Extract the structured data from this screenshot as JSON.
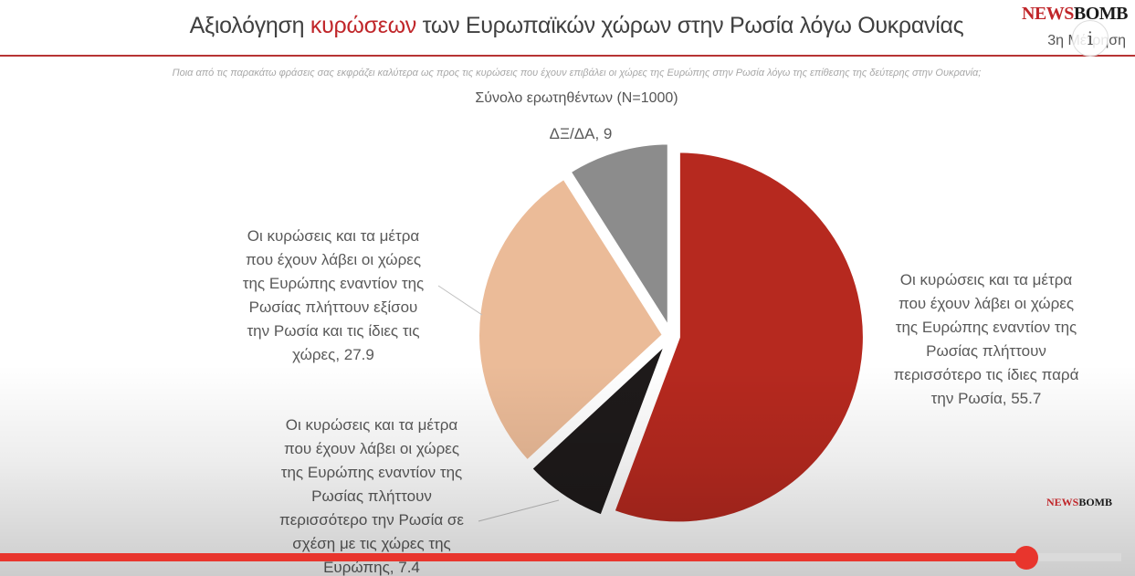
{
  "header": {
    "title_pre": "Αξιολόγηση ",
    "title_highlight": "κυρώσεων",
    "title_post": " των Ευρωπαϊκών χώρων στην Ρωσία λόγω Ουκρανίας",
    "brand_red": "NEWS",
    "brand_dark": "BOMB",
    "wave": "3η Μέτρηση"
  },
  "question": "Ποια από τις παρακάτω φράσεις σας εκφράζει καλύτερα ως προς τις κυρώσεις που έχουν επιβάλει οι χώρες της Ευρώπης στην Ρωσία λόγω της επίθεσης της δεύτερης στην Ουκρανία;",
  "watermark": {
    "red": "NEWS",
    "dark": "BOMB"
  },
  "video": {
    "progress": 0.915
  },
  "chart_data": {
    "type": "pie",
    "title": "Σύνολο ερωτηθέντων (N=1000)",
    "slices": [
      {
        "label": "Οι κυρώσεις και τα μέτρα που έχουν λάβει οι χώρες της Ευρώπης εναντίον της Ρωσίας πλήττουν περισσότερο τις ίδιες παρά την Ρωσία",
        "value": 55.7,
        "color": "#b6291f",
        "label_lines": [
          "Οι κυρώσεις και τα μέτρα",
          "που έχουν λάβει οι χώρες",
          "της Ευρώπης εναντίον της",
          "Ρωσίας πλήττουν",
          "περισσότερο τις ίδιες παρά",
          "την Ρωσία, 55.7"
        ]
      },
      {
        "label": "Οι κυρώσεις και τα μέτρα που έχουν λάβει οι χώρες της Ευρώπης εναντίον της Ρωσίας πλήττουν περισσότερο την Ρωσία σε σχέση με τις χώρες της Ευρώπης",
        "value": 7.4,
        "color": "#1e1a1a",
        "label_lines": [
          "Οι κυρώσεις και τα μέτρα",
          "που έχουν λάβει οι χώρες",
          "της Ευρώπης εναντίον της",
          "Ρωσίας πλήττουν",
          "περισσότερο την Ρωσία σε",
          "σχέση με τις χώρες της",
          "Ευρώπης, 7.4"
        ]
      },
      {
        "label": "Οι κυρώσεις και τα μέτρα που έχουν λάβει οι χώρες της Ευρώπης εναντίον της Ρωσίας πλήττουν εξίσου την Ρωσία και τις ίδιες τις χώρες",
        "value": 27.9,
        "color": "#ebbb98",
        "label_lines": [
          "Οι κυρώσεις και τα μέτρα",
          "που έχουν λάβει οι χώρες",
          "της Ευρώπης εναντίον της",
          "Ρωσίας πλήττουν εξίσου",
          "την Ρωσία και τις ίδιες τις",
          "χώρες, 27.9"
        ]
      },
      {
        "label": "ΔΞ/ΔΑ",
        "value": 9,
        "color": "#8c8c8c",
        "label_lines": [
          "ΔΞ/ΔΑ, 9"
        ]
      }
    ],
    "start_angle_deg": 0,
    "direction": "clockwise",
    "exploded": true
  }
}
